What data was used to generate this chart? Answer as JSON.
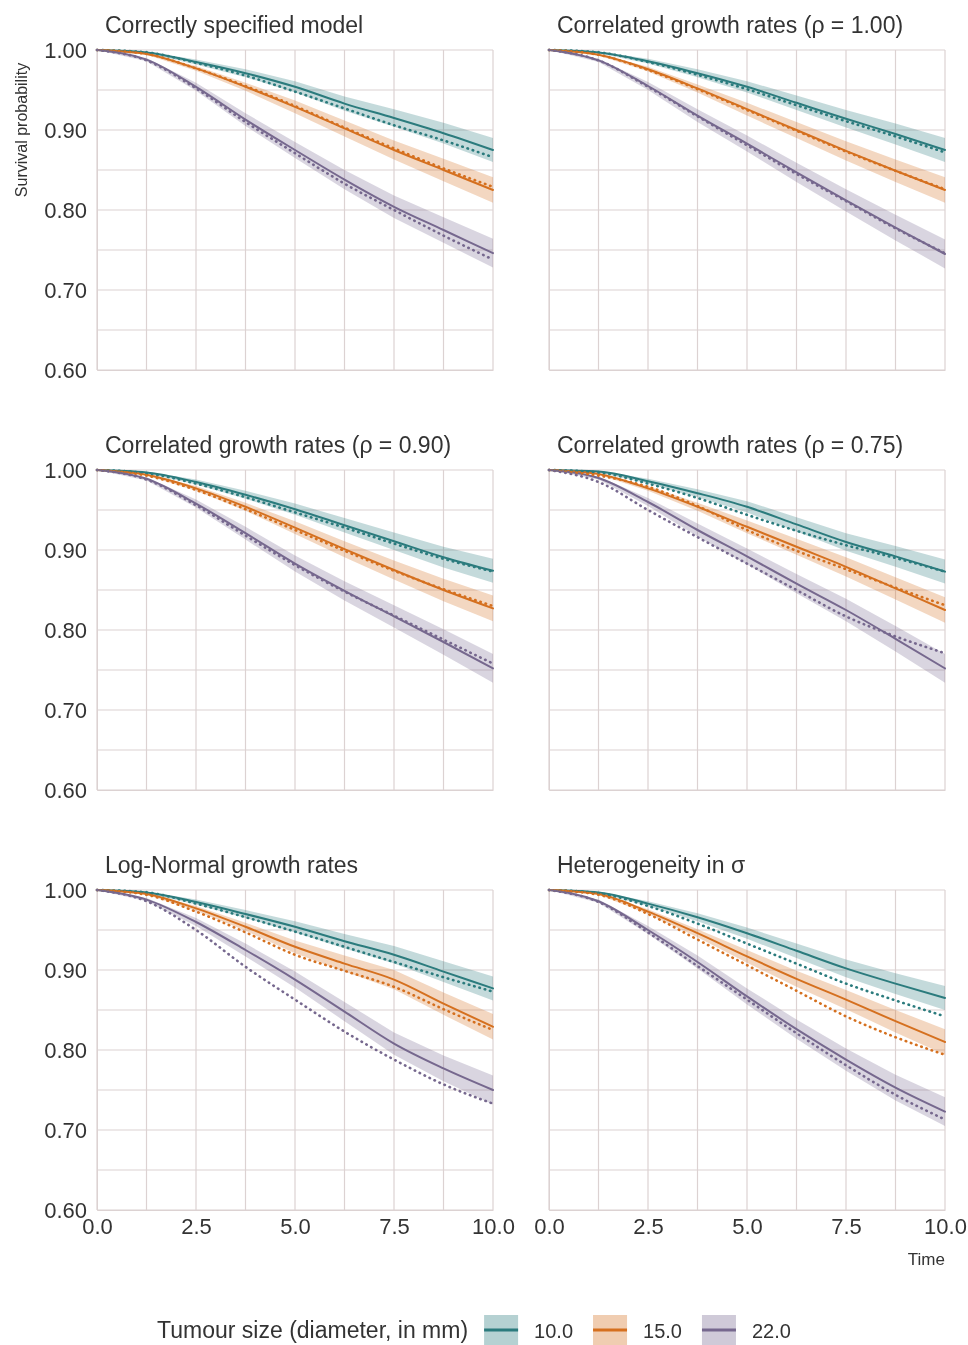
{
  "chart_data": [
    {
      "type": "line",
      "title": "Correctly specified model",
      "ylabel": "Survival probability",
      "tick_labels": "y",
      "grid": true,
      "xlim": [
        0,
        10
      ],
      "ylim": [
        0.6,
        1.0
      ],
      "xticks": [
        {
          "value": 0,
          "label": null
        },
        {
          "value": 1.25,
          "label": null
        },
        {
          "value": 2.5,
          "label": null
        },
        {
          "value": 3.75,
          "label": null
        },
        {
          "value": 5,
          "label": null
        },
        {
          "value": 6.25,
          "label": null
        },
        {
          "value": 7.5,
          "label": null
        },
        {
          "value": 8.75,
          "label": null
        },
        {
          "value": 10,
          "label": null
        }
      ],
      "yticks": [
        {
          "value": 0.6,
          "label": "0.60"
        },
        {
          "value": 0.65,
          "label": null
        },
        {
          "value": 0.7,
          "label": "0.70"
        },
        {
          "value": 0.75,
          "label": null
        },
        {
          "value": 0.8,
          "label": "0.80"
        },
        {
          "value": 0.85,
          "label": null
        },
        {
          "value": 0.9,
          "label": "0.90"
        },
        {
          "value": 0.95,
          "label": null
        },
        {
          "value": 1.0,
          "label": "1.00"
        }
      ],
      "x": [
        0,
        1.25,
        2.5,
        3.75,
        5,
        6.25,
        7.5,
        8.75,
        10
      ],
      "series": [
        {
          "color": "#2b7b7d",
          "values": [
            1,
            0.997,
            0.985,
            0.971,
            0.954,
            0.933,
            0.915,
            0.896,
            0.875
          ],
          "lower": [
            1,
            0.996,
            0.982,
            0.966,
            0.947,
            0.924,
            0.904,
            0.883,
            0.86
          ],
          "upper": [
            1,
            0.998,
            0.988,
            0.976,
            0.961,
            0.942,
            0.926,
            0.909,
            0.89
          ]
        },
        {
          "color": "#d5701f",
          "values": [
            1,
            0.995,
            0.977,
            0.954,
            0.929,
            0.902,
            0.875,
            0.85,
            0.825
          ],
          "lower": [
            1,
            0.994,
            0.974,
            0.949,
            0.921,
            0.892,
            0.863,
            0.836,
            0.809
          ],
          "upper": [
            1,
            0.996,
            0.98,
            0.959,
            0.937,
            0.912,
            0.887,
            0.864,
            0.841
          ]
        },
        {
          "color": "#76688e",
          "values": [
            1,
            0.988,
            0.954,
            0.913,
            0.875,
            0.838,
            0.804,
            0.775,
            0.746
          ],
          "lower": [
            1,
            0.986,
            0.949,
            0.905,
            0.865,
            0.826,
            0.79,
            0.759,
            0.728
          ],
          "upper": [
            1,
            0.99,
            0.959,
            0.921,
            0.885,
            0.85,
            0.818,
            0.791,
            0.764
          ]
        },
        {
          "color": "#2b7b7d",
          "line_style": "dotted",
          "values": [
            1,
            0.997,
            0.984,
            0.968,
            0.948,
            0.927,
            0.906,
            0.887,
            0.866
          ]
        },
        {
          "color": "#d5701f",
          "line_style": "dotted",
          "values": [
            1,
            0.995,
            0.977,
            0.955,
            0.93,
            0.903,
            0.877,
            0.852,
            0.829
          ]
        },
        {
          "color": "#76688e",
          "line_style": "dotted",
          "values": [
            1,
            0.987,
            0.952,
            0.91,
            0.871,
            0.833,
            0.8,
            0.768,
            0.738
          ]
        }
      ]
    },
    {
      "type": "line",
      "title": "Correlated growth rates (ρ = 1.00)",
      "tick_labels": false,
      "grid": true,
      "xlim": [
        0,
        10
      ],
      "ylim": [
        0.6,
        1.0
      ],
      "xticks": [
        {
          "value": 0,
          "label": null
        },
        {
          "value": 1.25,
          "label": null
        },
        {
          "value": 2.5,
          "label": null
        },
        {
          "value": 3.75,
          "label": null
        },
        {
          "value": 5,
          "label": null
        },
        {
          "value": 6.25,
          "label": null
        },
        {
          "value": 7.5,
          "label": null
        },
        {
          "value": 8.75,
          "label": null
        },
        {
          "value": 10,
          "label": null
        }
      ],
      "yticks": [
        {
          "value": 0.6,
          "label": null
        },
        {
          "value": 0.65,
          "label": null
        },
        {
          "value": 0.7,
          "label": null
        },
        {
          "value": 0.75,
          "label": null
        },
        {
          "value": 0.8,
          "label": null
        },
        {
          "value": 0.85,
          "label": null
        },
        {
          "value": 0.9,
          "label": null
        },
        {
          "value": 0.95,
          "label": null
        },
        {
          "value": 1.0,
          "label": null
        }
      ],
      "x": [
        0,
        1.25,
        2.5,
        3.75,
        5,
        6.25,
        7.5,
        8.75,
        10
      ],
      "series": [
        {
          "color": "#2b7b7d",
          "values": [
            1,
            0.997,
            0.986,
            0.971,
            0.954,
            0.934,
            0.914,
            0.895,
            0.875
          ],
          "lower": [
            1,
            0.996,
            0.983,
            0.966,
            0.947,
            0.925,
            0.903,
            0.882,
            0.86
          ],
          "upper": [
            1,
            0.998,
            0.989,
            0.976,
            0.961,
            0.943,
            0.925,
            0.908,
            0.89
          ]
        },
        {
          "color": "#d5701f",
          "values": [
            1,
            0.994,
            0.976,
            0.952,
            0.926,
            0.9,
            0.874,
            0.849,
            0.825
          ],
          "lower": [
            1,
            0.993,
            0.973,
            0.947,
            0.918,
            0.89,
            0.862,
            0.835,
            0.809
          ],
          "upper": [
            1,
            0.995,
            0.979,
            0.957,
            0.934,
            0.91,
            0.886,
            0.863,
            0.841
          ]
        },
        {
          "color": "#76688e",
          "values": [
            1,
            0.987,
            0.955,
            0.918,
            0.883,
            0.847,
            0.812,
            0.778,
            0.745
          ],
          "lower": [
            1,
            0.985,
            0.95,
            0.91,
            0.873,
            0.835,
            0.798,
            0.762,
            0.727
          ],
          "upper": [
            1,
            0.989,
            0.96,
            0.926,
            0.893,
            0.859,
            0.826,
            0.794,
            0.763
          ]
        },
        {
          "color": "#2b7b7d",
          "line_style": "dotted",
          "values": [
            1,
            0.997,
            0.985,
            0.969,
            0.951,
            0.931,
            0.911,
            0.892,
            0.872
          ]
        },
        {
          "color": "#d5701f",
          "line_style": "dotted",
          "values": [
            1,
            0.994,
            0.975,
            0.951,
            0.925,
            0.899,
            0.873,
            0.849,
            0.826
          ]
        },
        {
          "color": "#76688e",
          "line_style": "dotted",
          "values": [
            1,
            0.987,
            0.954,
            0.917,
            0.881,
            0.845,
            0.811,
            0.777,
            0.746
          ]
        }
      ]
    },
    {
      "type": "line",
      "title": "Correlated growth rates (ρ = 0.90)",
      "tick_labels": "y",
      "grid": true,
      "xlim": [
        0,
        10
      ],
      "ylim": [
        0.6,
        1.0
      ],
      "xticks": [
        {
          "value": 0,
          "label": null
        },
        {
          "value": 1.25,
          "label": null
        },
        {
          "value": 2.5,
          "label": null
        },
        {
          "value": 3.75,
          "label": null
        },
        {
          "value": 5,
          "label": null
        },
        {
          "value": 6.25,
          "label": null
        },
        {
          "value": 7.5,
          "label": null
        },
        {
          "value": 8.75,
          "label": null
        },
        {
          "value": 10,
          "label": null
        }
      ],
      "yticks": [
        {
          "value": 0.6,
          "label": "0.60"
        },
        {
          "value": 0.65,
          "label": null
        },
        {
          "value": 0.7,
          "label": "0.70"
        },
        {
          "value": 0.75,
          "label": null
        },
        {
          "value": 0.8,
          "label": "0.80"
        },
        {
          "value": 0.85,
          "label": null
        },
        {
          "value": 0.9,
          "label": "0.90"
        },
        {
          "value": 0.95,
          "label": null
        },
        {
          "value": 1.0,
          "label": "1.00"
        }
      ],
      "x": [
        0,
        1.25,
        2.5,
        3.75,
        5,
        6.25,
        7.5,
        8.75,
        10
      ],
      "series": [
        {
          "color": "#2b7b7d",
          "values": [
            1,
            0.997,
            0.985,
            0.969,
            0.951,
            0.931,
            0.911,
            0.891,
            0.874
          ],
          "lower": [
            1,
            0.996,
            0.982,
            0.964,
            0.944,
            0.922,
            0.9,
            0.878,
            0.859
          ],
          "upper": [
            1,
            0.998,
            0.988,
            0.974,
            0.958,
            0.94,
            0.922,
            0.904,
            0.889
          ]
        },
        {
          "color": "#d5701f",
          "values": [
            1,
            0.994,
            0.977,
            0.954,
            0.928,
            0.901,
            0.875,
            0.85,
            0.827
          ],
          "lower": [
            1,
            0.993,
            0.974,
            0.949,
            0.92,
            0.891,
            0.863,
            0.836,
            0.811
          ],
          "upper": [
            1,
            0.995,
            0.98,
            0.959,
            0.936,
            0.911,
            0.887,
            0.864,
            0.843
          ]
        },
        {
          "color": "#76688e",
          "values": [
            1,
            0.989,
            0.958,
            0.921,
            0.883,
            0.849,
            0.817,
            0.785,
            0.752
          ],
          "lower": [
            1,
            0.987,
            0.953,
            0.913,
            0.873,
            0.837,
            0.803,
            0.769,
            0.734
          ],
          "upper": [
            1,
            0.991,
            0.963,
            0.929,
            0.893,
            0.861,
            0.831,
            0.801,
            0.77
          ]
        },
        {
          "color": "#2b7b7d",
          "line_style": "dotted",
          "values": [
            1,
            0.996,
            0.983,
            0.966,
            0.947,
            0.928,
            0.908,
            0.889,
            0.873
          ]
        },
        {
          "color": "#d5701f",
          "line_style": "dotted",
          "values": [
            1,
            0.993,
            0.975,
            0.951,
            0.925,
            0.899,
            0.874,
            0.851,
            0.83
          ]
        },
        {
          "color": "#76688e",
          "line_style": "dotted",
          "values": [
            1,
            0.988,
            0.956,
            0.918,
            0.881,
            0.848,
            0.818,
            0.788,
            0.758
          ]
        }
      ]
    },
    {
      "type": "line",
      "title": "Correlated growth rates (ρ = 0.75)",
      "tick_labels": false,
      "grid": true,
      "xlim": [
        0,
        10
      ],
      "ylim": [
        0.6,
        1.0
      ],
      "xticks": [
        {
          "value": 0,
          "label": null
        },
        {
          "value": 1.25,
          "label": null
        },
        {
          "value": 2.5,
          "label": null
        },
        {
          "value": 3.75,
          "label": null
        },
        {
          "value": 5,
          "label": null
        },
        {
          "value": 6.25,
          "label": null
        },
        {
          "value": 7.5,
          "label": null
        },
        {
          "value": 8.75,
          "label": null
        },
        {
          "value": 10,
          "label": null
        }
      ],
      "yticks": [
        {
          "value": 0.6,
          "label": null
        },
        {
          "value": 0.65,
          "label": null
        },
        {
          "value": 0.7,
          "label": null
        },
        {
          "value": 0.75,
          "label": null
        },
        {
          "value": 0.8,
          "label": null
        },
        {
          "value": 0.85,
          "label": null
        },
        {
          "value": 0.9,
          "label": null
        },
        {
          "value": 0.95,
          "label": null
        },
        {
          "value": 1.0,
          "label": null
        }
      ],
      "x": [
        0,
        1.25,
        2.5,
        3.75,
        5,
        6.25,
        7.5,
        8.75,
        10
      ],
      "series": [
        {
          "color": "#2b7b7d",
          "values": [
            1,
            0.998,
            0.986,
            0.971,
            0.954,
            0.932,
            0.91,
            0.892,
            0.873
          ],
          "lower": [
            1,
            0.997,
            0.983,
            0.966,
            0.947,
            0.923,
            0.899,
            0.879,
            0.858
          ],
          "upper": [
            1,
            0.999,
            0.989,
            0.976,
            0.961,
            0.941,
            0.921,
            0.905,
            0.888
          ]
        },
        {
          "color": "#d5701f",
          "values": [
            1,
            0.995,
            0.977,
            0.954,
            0.929,
            0.904,
            0.879,
            0.852,
            0.825
          ],
          "lower": [
            1,
            0.994,
            0.974,
            0.949,
            0.921,
            0.894,
            0.867,
            0.838,
            0.809
          ],
          "upper": [
            1,
            0.996,
            0.98,
            0.959,
            0.937,
            0.914,
            0.891,
            0.866,
            0.841
          ]
        },
        {
          "color": "#76688e",
          "values": [
            1,
            0.99,
            0.96,
            0.925,
            0.892,
            0.858,
            0.825,
            0.789,
            0.752
          ],
          "lower": [
            1,
            0.988,
            0.955,
            0.917,
            0.882,
            0.846,
            0.811,
            0.773,
            0.734
          ],
          "upper": [
            1,
            0.992,
            0.965,
            0.933,
            0.902,
            0.87,
            0.839,
            0.805,
            0.77
          ]
        },
        {
          "color": "#2b7b7d",
          "line_style": "dotted",
          "values": [
            1,
            0.997,
            0.983,
            0.965,
            0.944,
            0.924,
            0.906,
            0.89,
            0.873
          ]
        },
        {
          "color": "#d5701f",
          "line_style": "dotted",
          "values": [
            1,
            0.993,
            0.979,
            0.955,
            0.925,
            0.899,
            0.876,
            0.853,
            0.831
          ]
        },
        {
          "color": "#76688e",
          "line_style": "dotted",
          "values": [
            1,
            0.985,
            0.95,
            0.916,
            0.883,
            0.85,
            0.817,
            0.792,
            0.771
          ]
        }
      ]
    },
    {
      "type": "line",
      "title": "Log-Normal growth rates",
      "grid": true,
      "xlim": [
        0,
        10
      ],
      "ylim": [
        0.6,
        1.0
      ],
      "xticks": [
        {
          "value": 0,
          "label": "0.0"
        },
        {
          "value": 1.25,
          "label": null
        },
        {
          "value": 2.5,
          "label": "2.5"
        },
        {
          "value": 3.75,
          "label": null
        },
        {
          "value": 5,
          "label": "5.0"
        },
        {
          "value": 6.25,
          "label": null
        },
        {
          "value": 7.5,
          "label": "7.5"
        },
        {
          "value": 8.75,
          "label": null
        },
        {
          "value": 10,
          "label": "10.0"
        }
      ],
      "yticks": [
        {
          "value": 0.6,
          "label": "0.60"
        },
        {
          "value": 0.65,
          "label": null
        },
        {
          "value": 0.7,
          "label": "0.70"
        },
        {
          "value": 0.75,
          "label": null
        },
        {
          "value": 0.8,
          "label": "0.80"
        },
        {
          "value": 0.85,
          "label": null
        },
        {
          "value": 0.9,
          "label": "0.90"
        },
        {
          "value": 0.95,
          "label": null
        },
        {
          "value": 1.0,
          "label": "1.00"
        }
      ],
      "x": [
        0,
        1.25,
        2.5,
        3.75,
        5,
        6.25,
        7.5,
        8.75,
        10
      ],
      "series": [
        {
          "color": "#2b7b7d",
          "values": [
            1,
            0.997,
            0.985,
            0.97,
            0.954,
            0.936,
            0.919,
            0.898,
            0.877
          ],
          "lower": [
            1,
            0.996,
            0.982,
            0.965,
            0.947,
            0.927,
            0.908,
            0.885,
            0.862
          ],
          "upper": [
            1,
            0.998,
            0.988,
            0.975,
            0.961,
            0.945,
            0.93,
            0.911,
            0.892
          ]
        },
        {
          "color": "#d5701f",
          "values": [
            1,
            0.995,
            0.977,
            0.954,
            0.929,
            0.908,
            0.888,
            0.858,
            0.829
          ],
          "lower": [
            1,
            0.994,
            0.974,
            0.949,
            0.921,
            0.898,
            0.876,
            0.844,
            0.813
          ],
          "upper": [
            1,
            0.996,
            0.98,
            0.959,
            0.937,
            0.918,
            0.9,
            0.872,
            0.845
          ]
        },
        {
          "color": "#76688e",
          "values": [
            1,
            0.988,
            0.96,
            0.925,
            0.888,
            0.848,
            0.808,
            0.777,
            0.75
          ],
          "lower": [
            1,
            0.986,
            0.955,
            0.917,
            0.878,
            0.836,
            0.794,
            0.761,
            0.732
          ],
          "upper": [
            1,
            0.99,
            0.965,
            0.933,
            0.898,
            0.86,
            0.822,
            0.793,
            0.768
          ]
        },
        {
          "color": "#2b7b7d",
          "line_style": "dotted",
          "values": [
            1,
            0.997,
            0.983,
            0.966,
            0.948,
            0.929,
            0.91,
            0.891,
            0.873
          ]
        },
        {
          "color": "#d5701f",
          "line_style": "dotted",
          "values": [
            1,
            0.994,
            0.973,
            0.947,
            0.919,
            0.899,
            0.879,
            0.851,
            0.825
          ]
        },
        {
          "color": "#76688e",
          "line_style": "dotted",
          "values": [
            1,
            0.986,
            0.95,
            0.904,
            0.863,
            0.823,
            0.788,
            0.757,
            0.733
          ]
        }
      ]
    },
    {
      "type": "line",
      "title": "Heterogeneity in σ",
      "xlabel": "Time",
      "legend_title": "Tumour size (diameter, in mm)",
      "legend": "bottom",
      "tick_labels": "x",
      "grid": true,
      "xlim": [
        0,
        10
      ],
      "ylim": [
        0.6,
        1.0
      ],
      "xticks": [
        {
          "value": 0,
          "label": "0.0"
        },
        {
          "value": 1.25,
          "label": null
        },
        {
          "value": 2.5,
          "label": "2.5"
        },
        {
          "value": 3.75,
          "label": null
        },
        {
          "value": 5,
          "label": "5.0"
        },
        {
          "value": 6.25,
          "label": null
        },
        {
          "value": 7.5,
          "label": "7.5"
        },
        {
          "value": 8.75,
          "label": null
        },
        {
          "value": 10,
          "label": "10.0"
        }
      ],
      "yticks": [
        {
          "value": 0.6,
          "label": null
        },
        {
          "value": 0.65,
          "label": null
        },
        {
          "value": 0.7,
          "label": null
        },
        {
          "value": 0.75,
          "label": null
        },
        {
          "value": 0.8,
          "label": null
        },
        {
          "value": 0.85,
          "label": null
        },
        {
          "value": 0.9,
          "label": null
        },
        {
          "value": 0.95,
          "label": null
        },
        {
          "value": 1.0,
          "label": null
        }
      ],
      "x": [
        0,
        1.25,
        2.5,
        3.75,
        5,
        6.25,
        7.5,
        8.75,
        10
      ],
      "series": [
        {
          "name": "10.0",
          "color": "#2b7b7d",
          "values": [
            1,
            0.997,
            0.983,
            0.966,
            0.946,
            0.924,
            0.902,
            0.883,
            0.865
          ],
          "lower": [
            1,
            0.996,
            0.98,
            0.961,
            0.939,
            0.915,
            0.891,
            0.87,
            0.85
          ],
          "upper": [
            1,
            0.998,
            0.986,
            0.971,
            0.953,
            0.933,
            0.913,
            0.896,
            0.88
          ]
        },
        {
          "name": "15.0",
          "color": "#d5701f",
          "values": [
            1,
            0.995,
            0.973,
            0.946,
            0.917,
            0.889,
            0.863,
            0.836,
            0.81
          ],
          "lower": [
            1,
            0.994,
            0.97,
            0.941,
            0.909,
            0.879,
            0.851,
            0.822,
            0.794
          ],
          "upper": [
            1,
            0.996,
            0.976,
            0.951,
            0.925,
            0.899,
            0.875,
            0.85,
            0.826
          ]
        },
        {
          "name": "22.0",
          "color": "#76688e",
          "values": [
            1,
            0.986,
            0.95,
            0.91,
            0.867,
            0.826,
            0.788,
            0.753,
            0.723
          ],
          "lower": [
            1,
            0.984,
            0.945,
            0.902,
            0.857,
            0.814,
            0.774,
            0.737,
            0.705
          ],
          "upper": [
            1,
            0.988,
            0.955,
            0.918,
            0.877,
            0.838,
            0.802,
            0.769,
            0.741
          ]
        },
        {
          "color": "#2b7b7d",
          "line_style": "dotted",
          "values": [
            1,
            0.996,
            0.98,
            0.958,
            0.933,
            0.908,
            0.883,
            0.862,
            0.842
          ]
        },
        {
          "color": "#d5701f",
          "line_style": "dotted",
          "values": [
            1,
            0.994,
            0.97,
            0.938,
            0.906,
            0.874,
            0.842,
            0.816,
            0.794
          ]
        },
        {
          "color": "#76688e",
          "line_style": "dotted",
          "values": [
            1,
            0.985,
            0.947,
            0.905,
            0.863,
            0.821,
            0.781,
            0.744,
            0.713
          ]
        }
      ]
    }
  ]
}
